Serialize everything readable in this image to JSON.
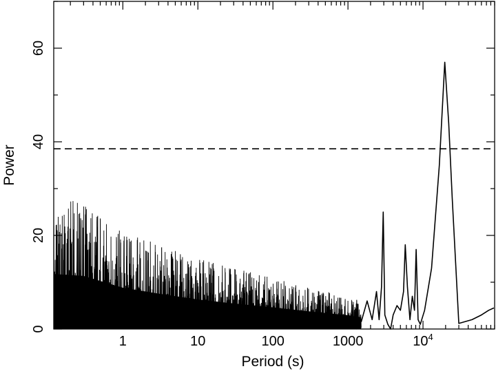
{
  "chart_data": {
    "type": "line",
    "xlabel": "Period (s)",
    "ylabel": "Power",
    "x_scale": "log",
    "xlim": [
      0.12,
      90000
    ],
    "ylim": [
      0,
      70
    ],
    "grid": false,
    "x_tick_labels": [
      {
        "value": 1,
        "label": "1"
      },
      {
        "value": 10,
        "label": "10"
      },
      {
        "value": 100,
        "label": "100"
      },
      {
        "value": 1000,
        "label": "1000"
      }
    ],
    "x_tick_label_1e4": {
      "value": 10000,
      "base": "10",
      "exponent": "4"
    },
    "y_tick_labels": [
      {
        "value": 0,
        "label": "0"
      },
      {
        "value": 20,
        "label": "20"
      },
      {
        "value": 40,
        "label": "40"
      },
      {
        "value": 60,
        "label": "60"
      }
    ],
    "threshold": {
      "y": 38.5,
      "style": "dashed"
    },
    "series": [
      {
        "style": "solid",
        "x": [
          1500,
          1800,
          2100,
          2400,
          2600,
          2800,
          2950,
          3100,
          3400,
          3700,
          4000,
          4500,
          5000,
          5500,
          5800,
          6200,
          6700,
          7200,
          7700,
          8100,
          8600,
          9200,
          10500,
          13000,
          16500,
          19500,
          22000,
          24500,
          30000,
          45000,
          60000,
          75000,
          88000
        ],
        "y": [
          1.5,
          6,
          2,
          8,
          2,
          9,
          25,
          3,
          1,
          0,
          3,
          5,
          4,
          8,
          18,
          9,
          2,
          7,
          4,
          17,
          2,
          1,
          4,
          13,
          35,
          57,
          44,
          28,
          1.2,
          2,
          3,
          4,
          4.5
        ]
      }
    ],
    "noise_envelope": [
      {
        "x": 0.12,
        "max": 28
      },
      {
        "x": 0.3,
        "max": 27
      },
      {
        "x": 1,
        "max": 21
      },
      {
        "x": 3,
        "max": 18
      },
      {
        "x": 10,
        "max": 15
      },
      {
        "x": 30,
        "max": 13
      },
      {
        "x": 100,
        "max": 11
      },
      {
        "x": 300,
        "max": 9
      },
      {
        "x": 1000,
        "max": 7
      },
      {
        "x": 1500,
        "max": 6
      }
    ]
  }
}
